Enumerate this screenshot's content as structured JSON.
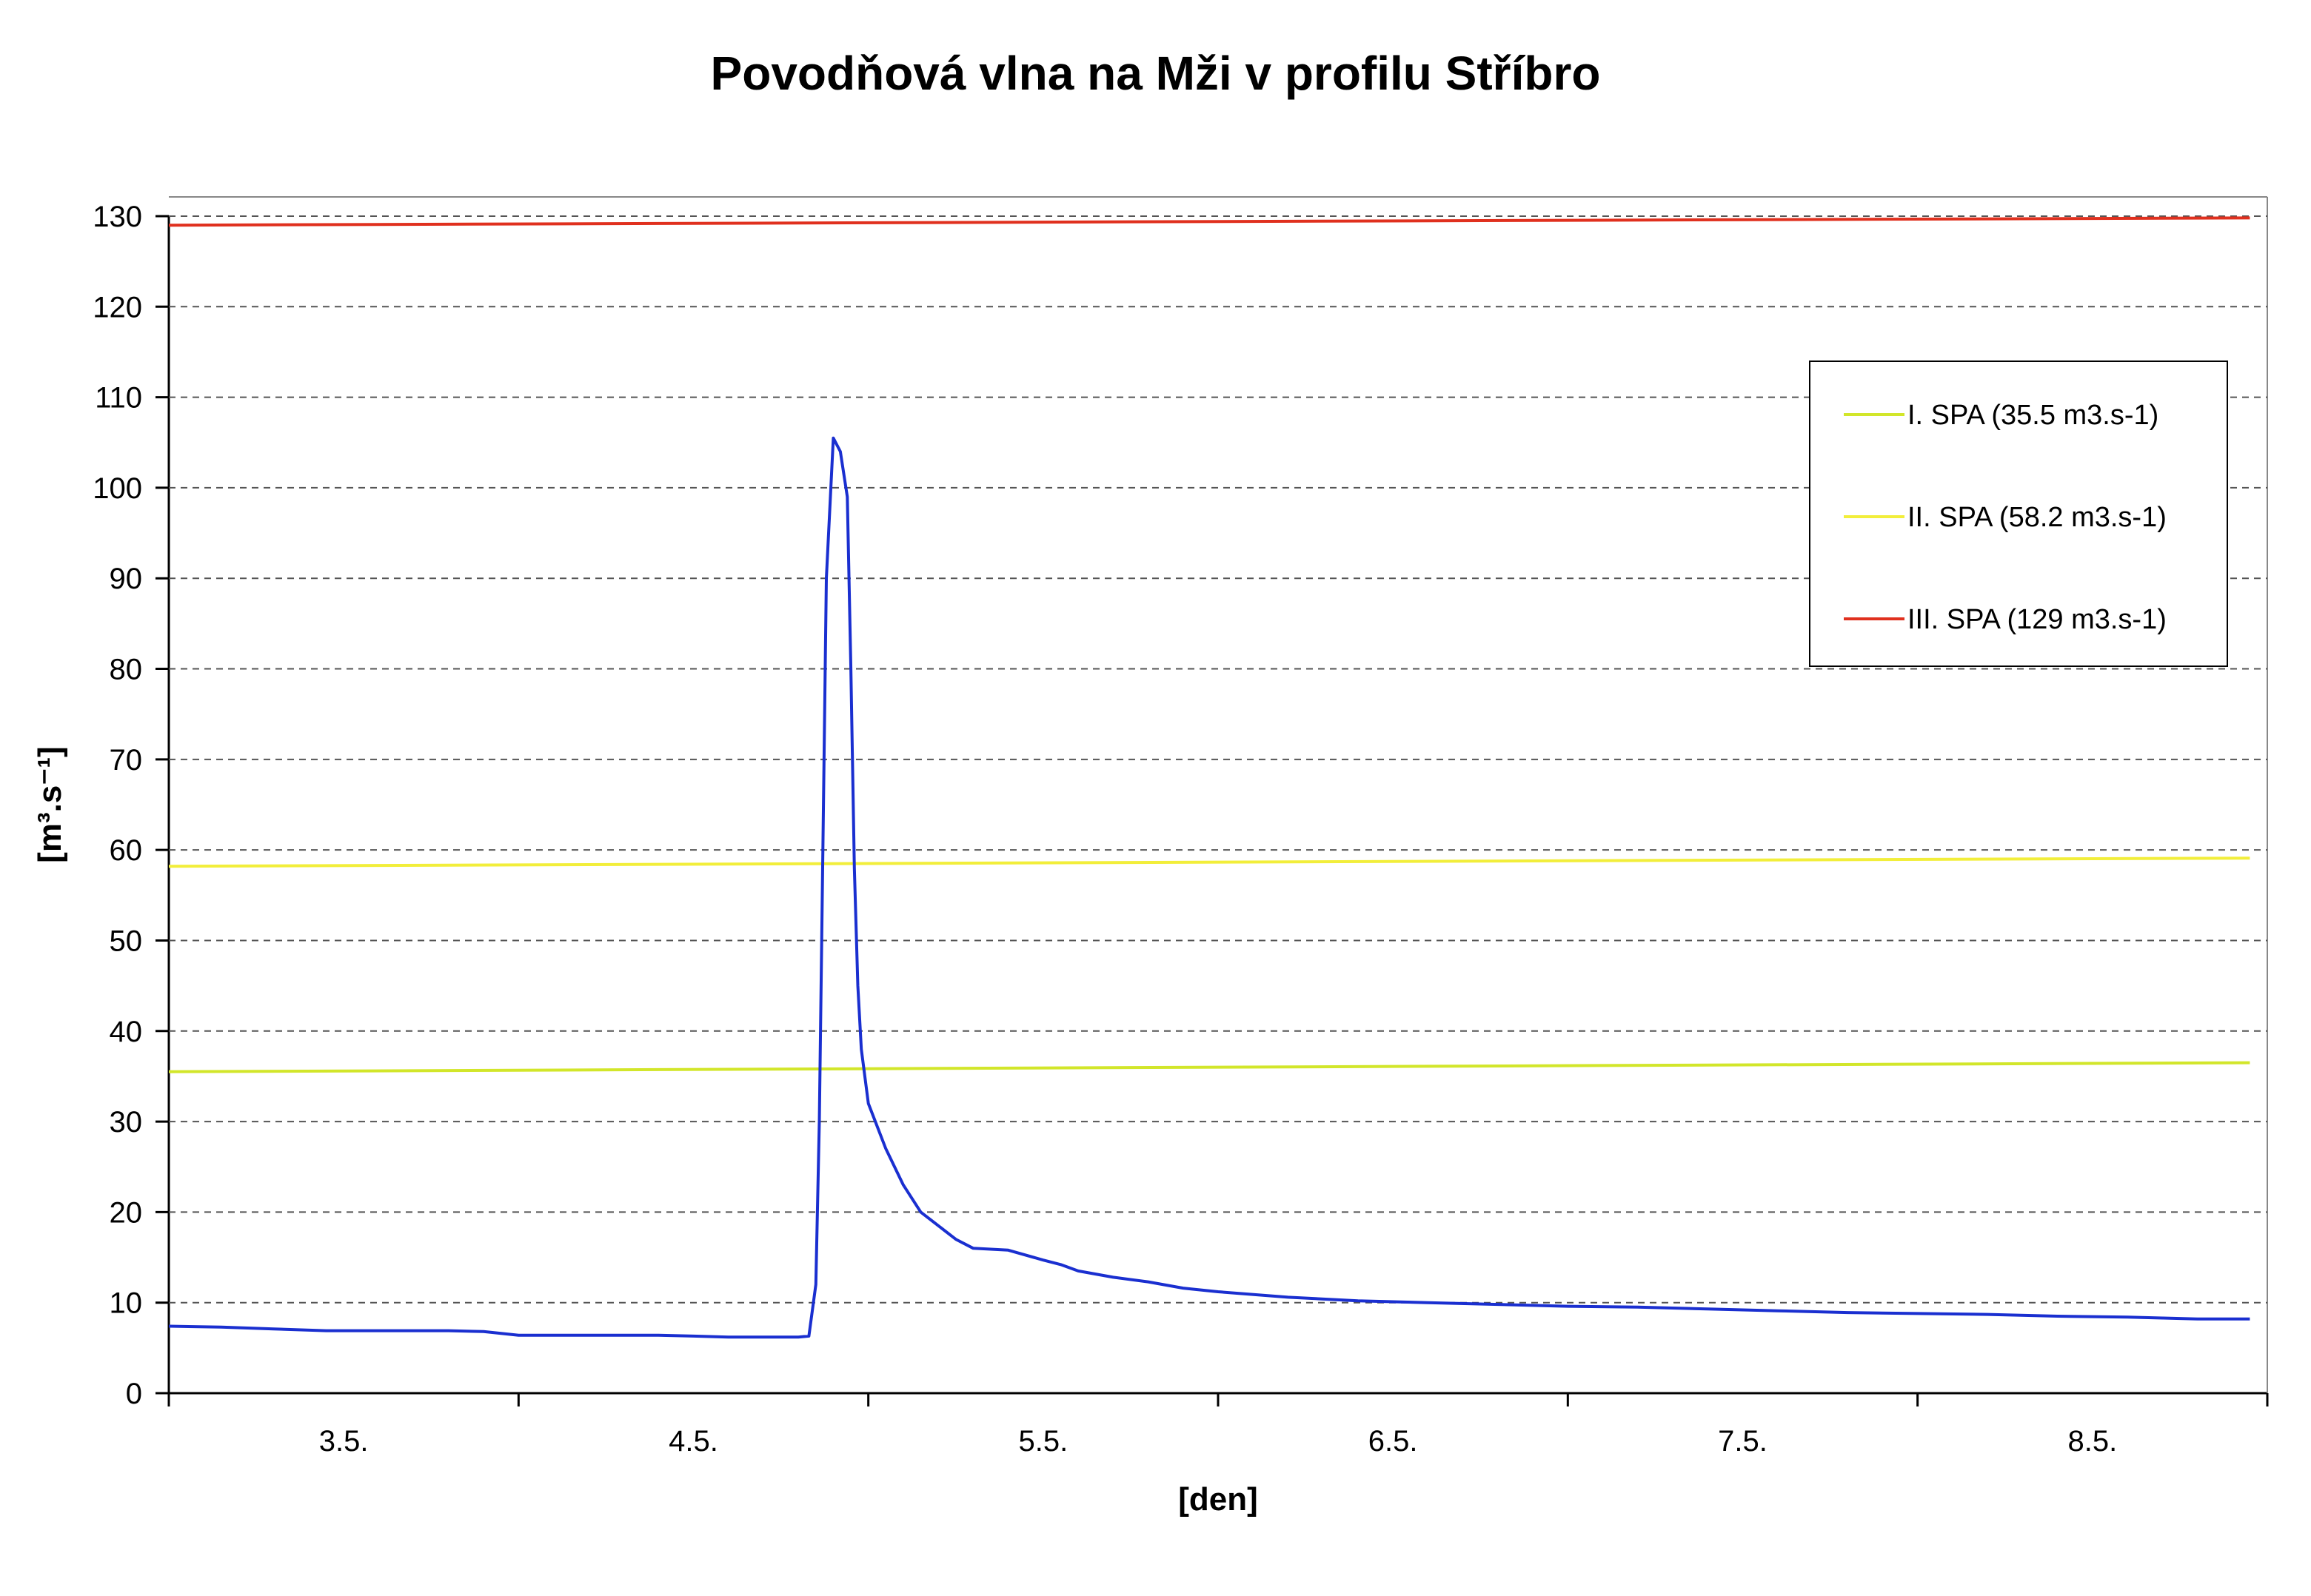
{
  "chart_data": {
    "type": "line",
    "title": "Povodňová vlna na Mži v profilu Stříbro",
    "xlabel": "[den]",
    "ylabel": "[m³.s⁻¹]",
    "ylim": [
      0,
      130
    ],
    "yticks": [
      "0",
      "10",
      "20",
      "30",
      "40",
      "50",
      "60",
      "70",
      "80",
      "90",
      "100",
      "110",
      "120",
      "130"
    ],
    "xlim": [
      0,
      6
    ],
    "xtick_labels": [
      "3.5.",
      "4.5.",
      "5.5.",
      "6.5.",
      "7.5.",
      "8.5."
    ],
    "grid": "horizontal dashed",
    "legend_position": "upper-right",
    "series": [
      {
        "name": "",
        "color": "#1a2fd0",
        "x": [
          0,
          0.15,
          0.3,
          0.45,
          0.6,
          0.8,
          0.9,
          1.0,
          1.2,
          1.4,
          1.5,
          1.6,
          1.75,
          1.8,
          1.83,
          1.85,
          1.86,
          1.87,
          1.88,
          1.9,
          1.92,
          1.94,
          1.95,
          1.96,
          1.97,
          1.98,
          2.0,
          2.05,
          2.1,
          2.15,
          2.2,
          2.25,
          2.3,
          2.4,
          2.5,
          2.55,
          2.6,
          2.7,
          2.8,
          2.9,
          3.0,
          3.2,
          3.4,
          3.6,
          3.8,
          4.0,
          4.2,
          4.4,
          4.6,
          4.8,
          5.0,
          5.2,
          5.4,
          5.6,
          5.7,
          5.8,
          5.95
        ],
        "values": [
          7.4,
          7.3,
          7.1,
          6.9,
          6.9,
          6.9,
          6.8,
          6.4,
          6.4,
          6.4,
          6.3,
          6.2,
          6.2,
          6.2,
          6.3,
          12,
          30,
          60,
          90,
          105.5,
          104,
          99,
          80,
          58,
          45,
          38,
          32,
          27,
          23,
          20,
          18.5,
          17,
          16,
          15.8,
          14.7,
          14.2,
          13.5,
          12.8,
          12.3,
          11.6,
          11.2,
          10.6,
          10.2,
          10.0,
          9.8,
          9.6,
          9.5,
          9.3,
          9.1,
          8.9,
          8.8,
          8.7,
          8.5,
          8.4,
          8.3,
          8.2,
          8.2
        ]
      },
      {
        "name": "I. SPA (35.5 m3.s-1)",
        "color": "#d2e62a",
        "x": [
          0,
          5.95
        ],
        "values": [
          35.5,
          36.5
        ]
      },
      {
        "name": "II. SPA (58.2 m3.s-1)",
        "color": "#f2ee3a",
        "x": [
          0,
          5.95
        ],
        "values": [
          58.2,
          59.1
        ]
      },
      {
        "name": "III. SPA (129 m3.s-1)",
        "color": "#e0301e",
        "x": [
          0,
          5.95
        ],
        "values": [
          129.0,
          129.8
        ]
      }
    ]
  }
}
